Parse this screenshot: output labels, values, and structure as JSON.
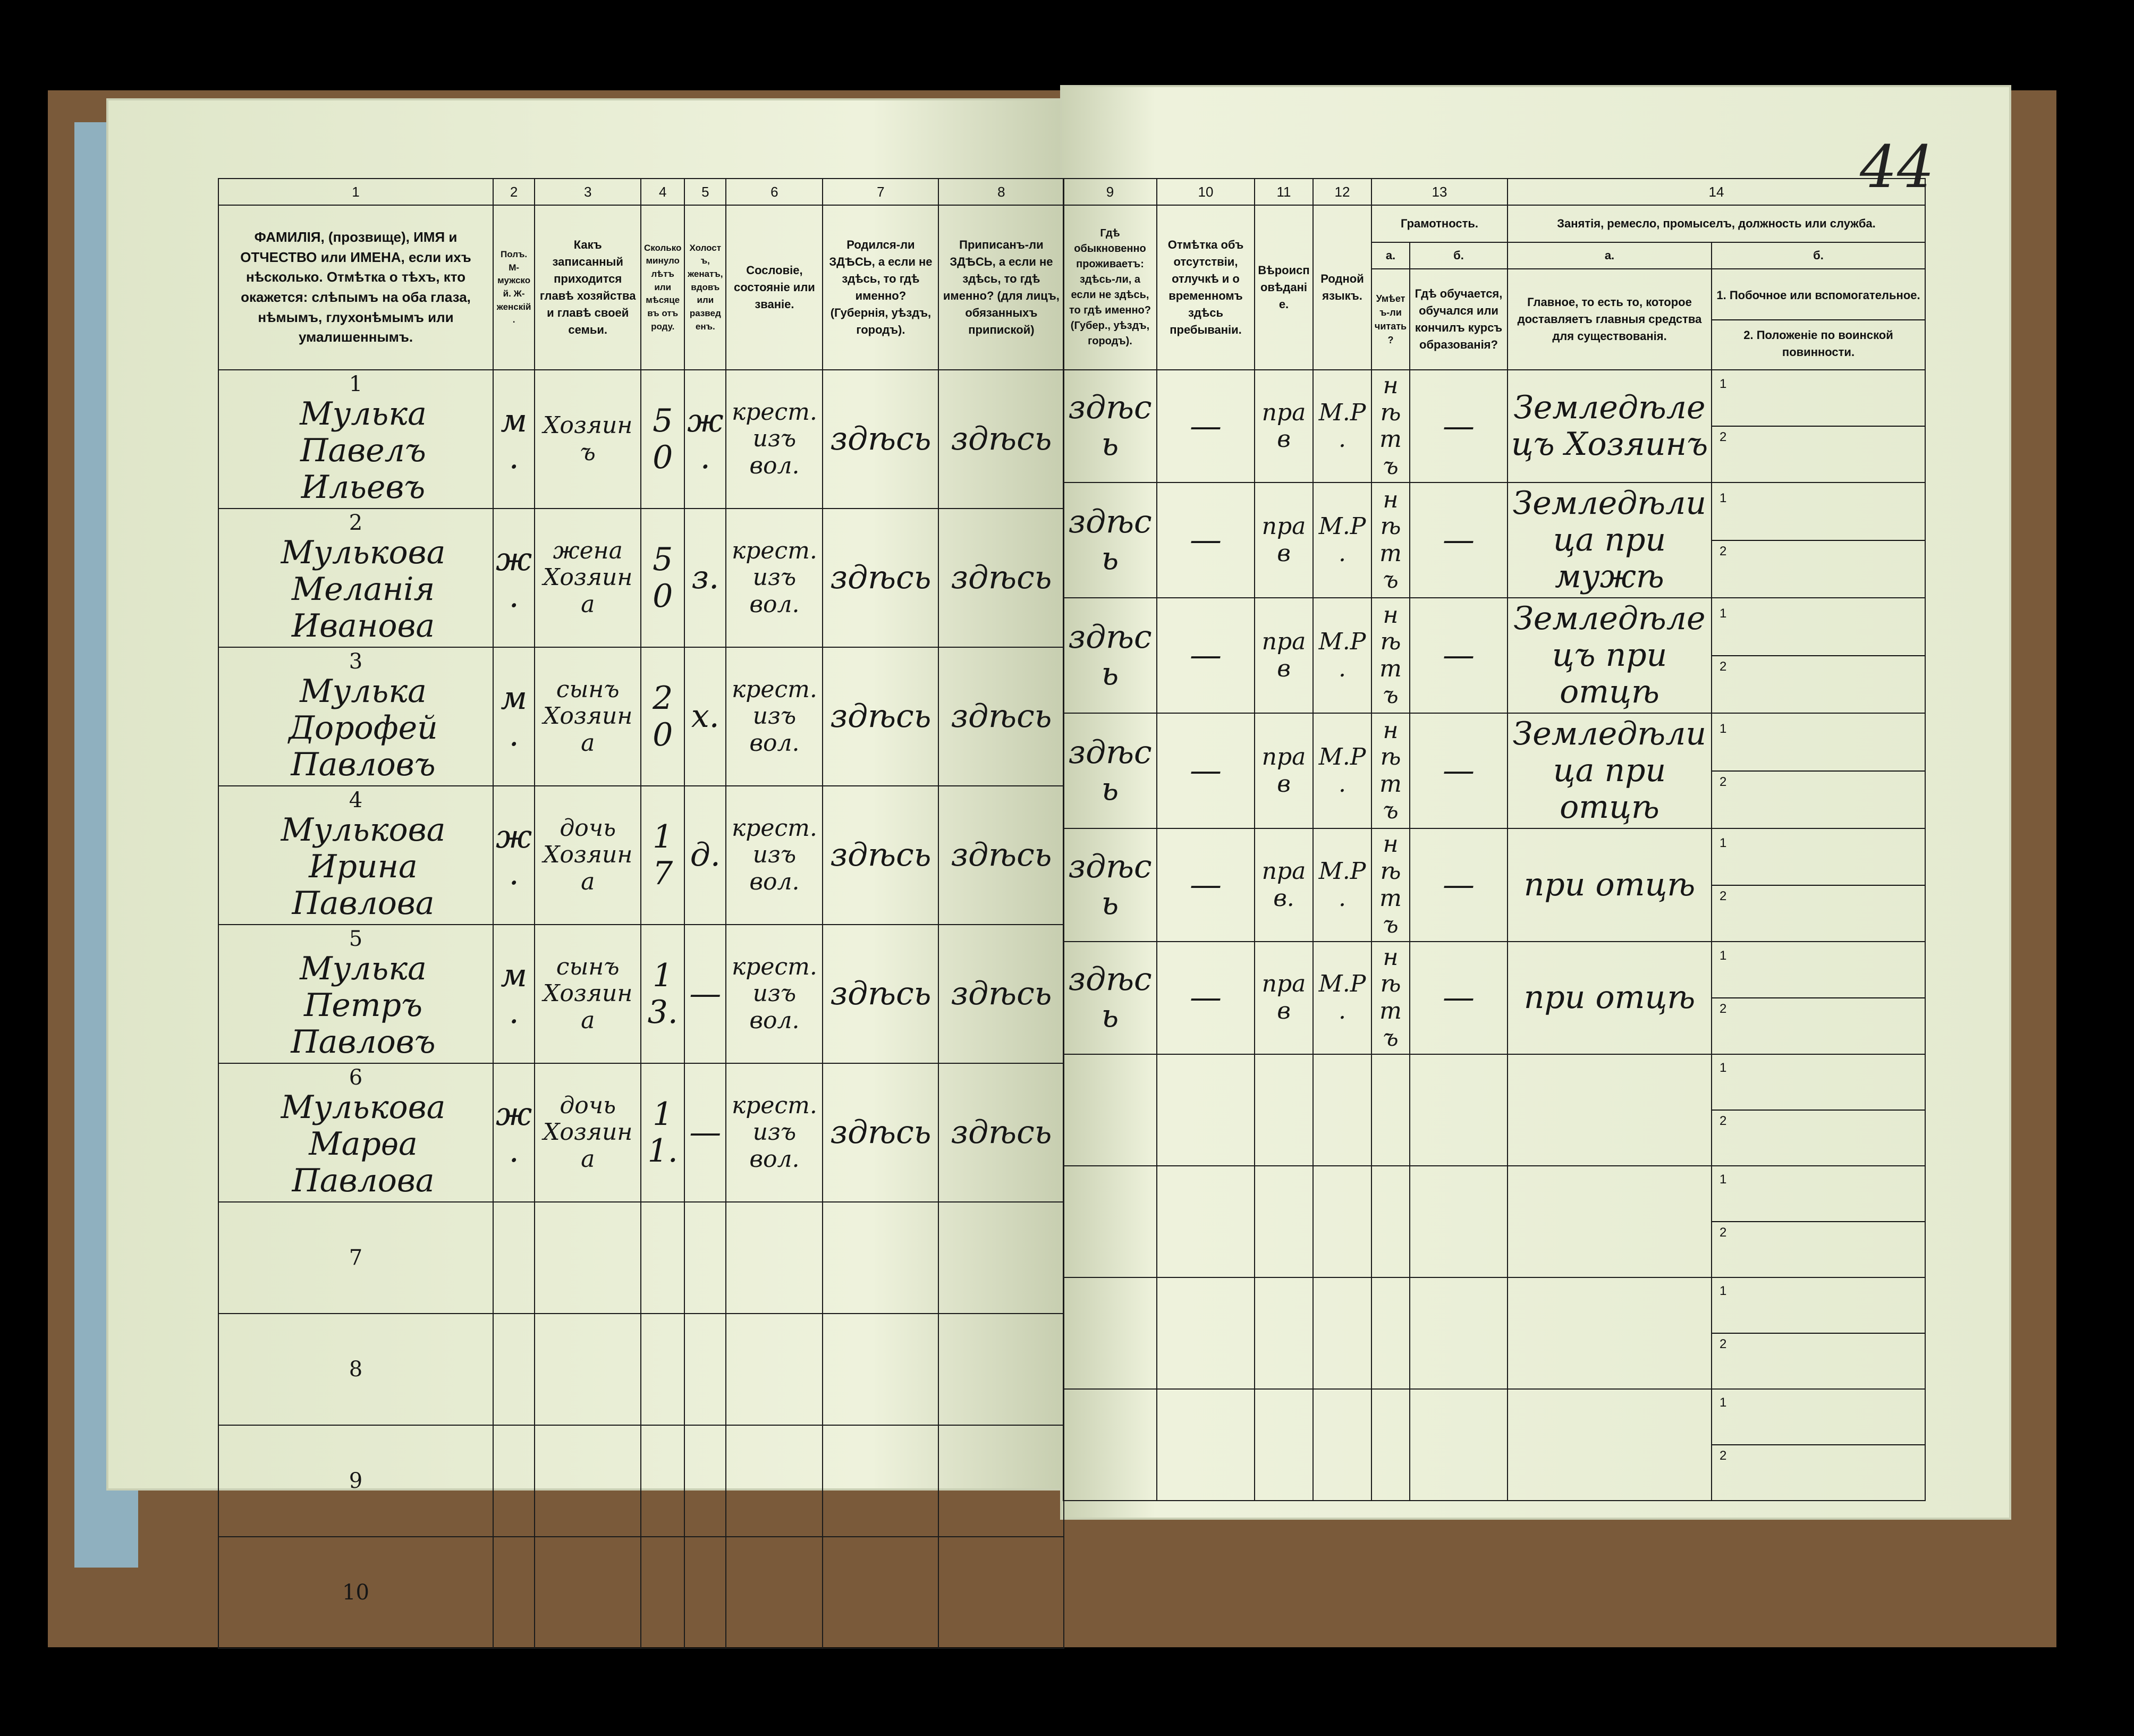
{
  "page_number": "44",
  "left_header": {
    "col_numbers": [
      "1",
      "2",
      "3",
      "4",
      "5",
      "6",
      "7",
      "8"
    ],
    "columns": [
      "ФАМИЛІЯ, (прозвище), ИМЯ и ОТЧЕСТВО или ИМЕНА, если ихъ нѣсколько. Отмѣтка о тѣхъ, кто окажется: слѣпымъ на оба глаза, нѣмымъ, глухонѣмымъ или умалишеннымъ.",
      "Полъ. М-мужской. Ж-женскій.",
      "Какъ записанный приходится главѣ хозяйства и главѣ своей семьи.",
      "Сколько минуло лѣтъ или мѣсяцевъ отъ роду.",
      "Холостъ, женатъ, вдовъ или разведенъ.",
      "Сословіе, состояніе или званіе.",
      "Родился-ли ЗДѢСЬ, а если не здѣсь, то гдѣ именно? (Губернія, уѣздъ, городъ).",
      "Приписанъ-ли ЗДѢСЬ, а если не здѣсь, то гдѣ именно? (для лицъ, обязанныхъ припиской)"
    ]
  },
  "right_header": {
    "col_numbers": [
      "9",
      "10",
      "11",
      "12",
      "13",
      "14"
    ],
    "col9": "Гдѣ обыкновенно проживаетъ: здѣсь-ли, а если не здѣсь, то гдѣ именно? (Губер., уѣздъ, городъ).",
    "col10": "Отмѣтка объ отсутствіи, отлучкѣ и о временномъ здѣсь пребываніи.",
    "col11": "Вѣроисповѣданіе.",
    "col12": "Родной языкъ.",
    "col13": "Грамотность.",
    "col13a_letter": "а.",
    "col13a": "Умѣетъ-ли читать?",
    "col13b_letter": "б.",
    "col13b": "Гдѣ обучается, обучался или кончилъ курсъ образованія?",
    "col14": "Занятія, ремесло, промыселъ, должность или служба.",
    "col14a_letter": "а.",
    "col14a": "Главное, то есть то, которое доставляетъ главныя средства для существованія.",
    "col14b_letter": "б.",
    "col14b_1": "1. Побочное или вспомогательное.",
    "col14b_2": "2. Положеніе по воинской повинности."
  },
  "rows": [
    {
      "n": "1",
      "name": "Мулька Павелъ Ильевъ",
      "sex": "м.",
      "relation": "Хозяинъ",
      "age": "50",
      "marital": "ж.",
      "estate": "крест. изъ вол.",
      "born": "здѣсь",
      "registered": "здѣсь",
      "resides": "здѣсь",
      "absence": "—",
      "religion": "прав",
      "language": "М.Р.",
      "literate": "нѣтъ",
      "education": "—",
      "occupation": "Земледѣлецъ Хозяинъ"
    },
    {
      "n": "2",
      "name": "Мулькова Меланія Иванова",
      "sex": "ж.",
      "relation": "жена Хозяина",
      "age": "50",
      "marital": "з.",
      "estate": "крест. изъ вол.",
      "born": "здѣсь",
      "registered": "здѣсь",
      "resides": "здѣсь",
      "absence": "—",
      "religion": "прав",
      "language": "М.Р.",
      "literate": "нѣтъ",
      "education": "—",
      "occupation": "Земледѣлица при мужѣ"
    },
    {
      "n": "3",
      "name": "Мулька Дорофей Павловъ",
      "sex": "м.",
      "relation": "сынъ Хозяина",
      "age": "20",
      "marital": "х.",
      "estate": "крест. изъ вол.",
      "born": "здѣсь",
      "registered": "здѣсь",
      "resides": "здѣсь",
      "absence": "—",
      "religion": "прав",
      "language": "М.Р.",
      "literate": "нѣтъ",
      "education": "—",
      "occupation": "Земледѣлецъ при отцѣ"
    },
    {
      "n": "4",
      "name": "Мулькова Ирина Павлова",
      "sex": "ж.",
      "relation": "дочь Хозяина",
      "age": "17",
      "marital": "д.",
      "estate": "крест. изъ вол.",
      "born": "здѣсь",
      "registered": "здѣсь",
      "resides": "здѣсь",
      "absence": "—",
      "religion": "прав",
      "language": "М.Р.",
      "literate": "нѣтъ",
      "education": "—",
      "occupation": "Земледѣлица при отцѣ"
    },
    {
      "n": "5",
      "name": "Мулька Петръ Павловъ",
      "sex": "м.",
      "relation": "сынъ Хозяина",
      "age": "13.",
      "marital": "—",
      "estate": "крест. изъ вол.",
      "born": "здѣсь",
      "registered": "здѣсь",
      "resides": "здѣсь",
      "absence": "—",
      "religion": "прав.",
      "language": "М.Р.",
      "literate": "нѣтъ",
      "education": "—",
      "occupation": "при отцѣ"
    },
    {
      "n": "6",
      "name": "Мулькова Марѳа Павлова",
      "sex": "ж.",
      "relation": "дочь Хозяина",
      "age": "11.",
      "marital": "—",
      "estate": "крест. изъ вол.",
      "born": "здѣсь",
      "registered": "здѣсь",
      "resides": "здѣсь",
      "absence": "—",
      "religion": "прав",
      "language": "М.Р.",
      "literate": "нѣтъ",
      "education": "—",
      "occupation": "при отцѣ"
    },
    {
      "n": "7"
    },
    {
      "n": "8"
    },
    {
      "n": "9"
    },
    {
      "n": "10"
    }
  ],
  "sub_labels": [
    "1",
    "2"
  ]
}
